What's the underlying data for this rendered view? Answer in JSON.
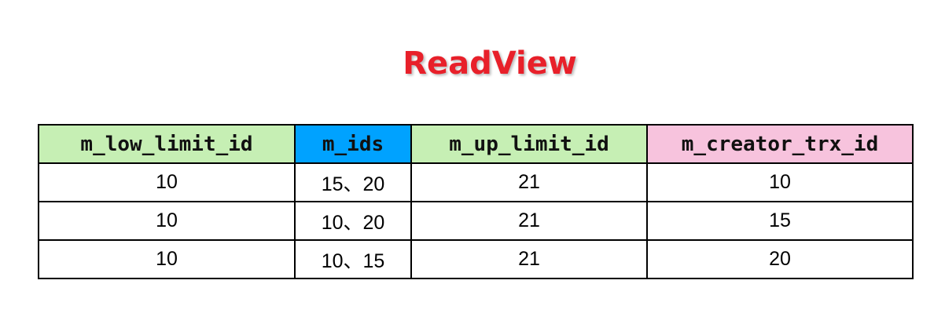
{
  "title": "ReadView",
  "colors": {
    "title": "#e8202a",
    "header_green": "#c6efb4",
    "header_blue": "#00a2ff",
    "header_pink": "#f7c3dd"
  },
  "table": {
    "columns": [
      {
        "label": "m_low_limit_id",
        "color": "#c6efb4"
      },
      {
        "label": "m_ids",
        "color": "#00a2ff"
      },
      {
        "label": "m_up_limit_id",
        "color": "#c6efb4"
      },
      {
        "label": "m_creator_trx_id",
        "color": "#f7c3dd"
      }
    ],
    "rows": [
      [
        "10",
        "15、20",
        "21",
        "10"
      ],
      [
        "10",
        "10、20",
        "21",
        "15"
      ],
      [
        "10",
        "10、15",
        "21",
        "20"
      ]
    ]
  }
}
